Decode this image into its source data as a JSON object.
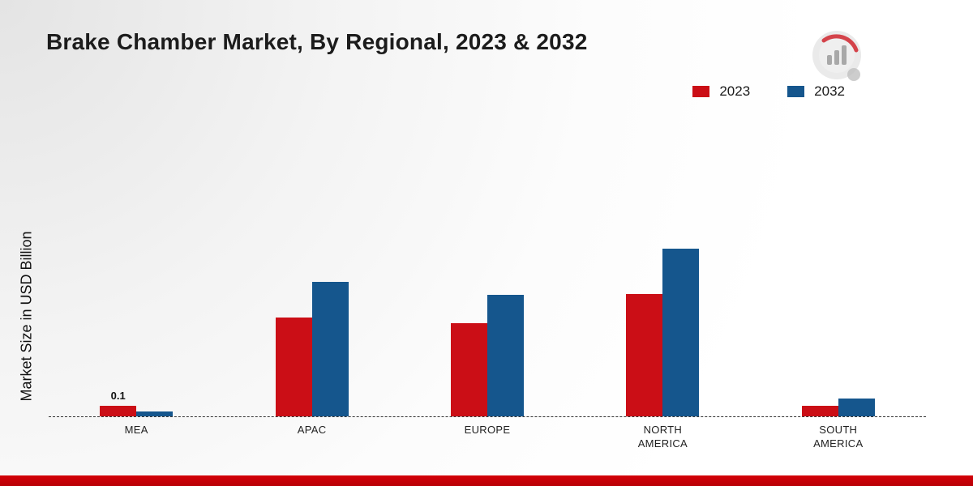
{
  "page": {
    "title": "Brake Chamber Market, By Regional, 2023 & 2032",
    "ylabel": "Market Size in USD Billion"
  },
  "colors": {
    "series_2023": "#cb0e16",
    "series_2032": "#15568d",
    "bottom_bar": "#c80008"
  },
  "chart_data": {
    "type": "bar",
    "title": "Brake Chamber Market, By Regional, 2023 & 2032",
    "xlabel": "",
    "ylabel": "Market Size in USD Billion",
    "categories": [
      "MEA",
      "APAC",
      "EUROPE",
      "NORTH AMERICA",
      "SOUTH AMERICA"
    ],
    "series": [
      {
        "name": "2023",
        "color": "#cb0e16",
        "values": [
          0.1,
          0.95,
          0.9,
          1.18,
          0.1
        ]
      },
      {
        "name": "2032",
        "color": "#15568d",
        "values": [
          0.05,
          1.3,
          1.17,
          1.62,
          0.17
        ]
      }
    ],
    "bar_labels": [
      {
        "series": "2023",
        "category": "MEA",
        "text": "0.1"
      }
    ],
    "ylim": [
      0,
      2
    ],
    "baseline_style": "dashed",
    "grid": false,
    "legend_position": "top-right"
  }
}
